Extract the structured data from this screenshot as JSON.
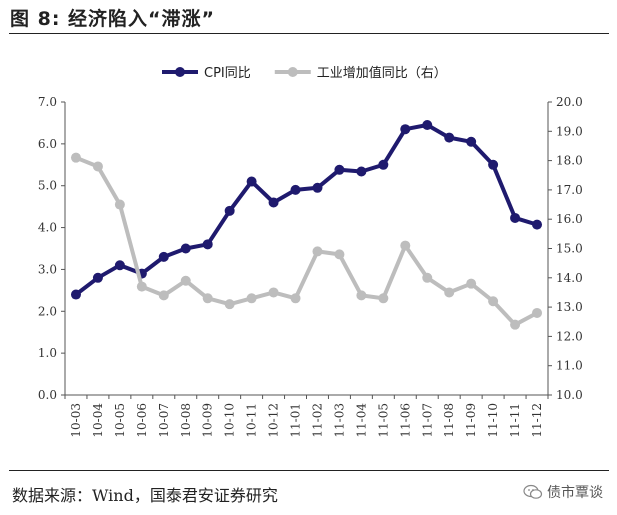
{
  "figure": {
    "title": "图  8:  经济陷入“滞涨”",
    "source": "数据来源：Wind，国泰君安证券研究",
    "watermark": "债市覃谈",
    "watermark_icon": "wechat-icon"
  },
  "chart_data": {
    "type": "line",
    "categories": [
      "10-03",
      "10-04",
      "10-05",
      "10-06",
      "10-07",
      "10-08",
      "10-09",
      "10-10",
      "10-11",
      "10-12",
      "11-01",
      "11-02",
      "11-03",
      "11-04",
      "11-05",
      "11-06",
      "11-07",
      "11-08",
      "11-09",
      "11-10",
      "11-11",
      "11-12"
    ],
    "series": [
      {
        "name": "CPI同比",
        "axis": "left",
        "color": "#1f1a6e",
        "values": [
          2.4,
          2.8,
          3.1,
          2.9,
          3.3,
          3.5,
          3.6,
          4.4,
          5.1,
          4.6,
          4.9,
          4.95,
          5.38,
          5.34,
          5.5,
          6.35,
          6.45,
          6.15,
          6.05,
          5.5,
          4.23,
          4.07
        ]
      },
      {
        "name": "工业增加值同比（右）",
        "axis": "right",
        "color": "#bdbdbd",
        "values": [
          18.1,
          17.8,
          16.5,
          13.7,
          13.4,
          13.9,
          13.3,
          13.1,
          13.3,
          13.5,
          13.3,
          14.9,
          14.8,
          13.4,
          13.3,
          15.1,
          14.0,
          13.5,
          13.8,
          13.2,
          12.4,
          12.8
        ]
      }
    ],
    "ylim_left": [
      0,
      7
    ],
    "yticks_left": [
      "0.0",
      "1.0",
      "2.0",
      "3.0",
      "4.0",
      "5.0",
      "6.0",
      "7.0"
    ],
    "ylim_right": [
      10,
      20
    ],
    "yticks_right": [
      "10.0",
      "11.0",
      "12.0",
      "13.0",
      "14.0",
      "15.0",
      "16.0",
      "17.0",
      "18.0",
      "19.0",
      "20.0"
    ],
    "grid": false,
    "legend_position": "top-center"
  }
}
